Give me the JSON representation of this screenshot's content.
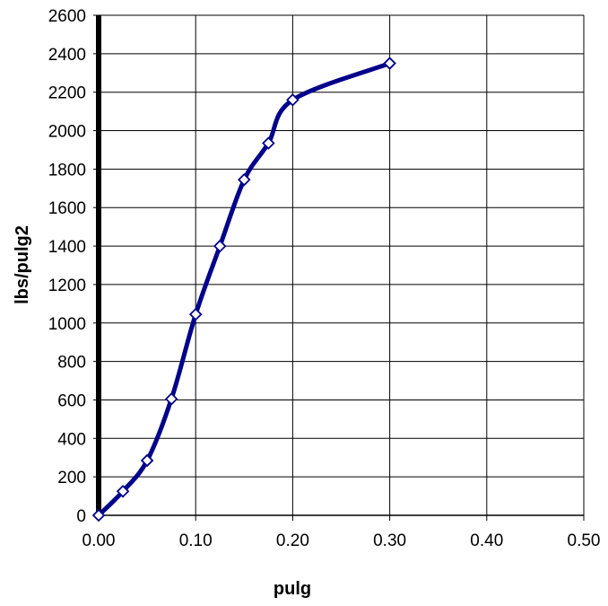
{
  "chart_data": {
    "type": "line",
    "title": "",
    "xlabel": "pulg",
    "ylabel": "lbs/pulg2",
    "xlim": [
      0,
      0.5
    ],
    "ylim": [
      0,
      2600
    ],
    "x_ticks": [
      "0.00",
      "0.10",
      "0.20",
      "0.30",
      "0.40",
      "0.50"
    ],
    "x_tick_values": [
      0,
      0.1,
      0.2,
      0.3,
      0.4,
      0.5
    ],
    "y_ticks": [
      "0",
      "200",
      "400",
      "600",
      "800",
      "1000",
      "1200",
      "1400",
      "1600",
      "1800",
      "2000",
      "2200",
      "2400",
      "2600"
    ],
    "y_tick_values": [
      0,
      200,
      400,
      600,
      800,
      1000,
      1200,
      1400,
      1600,
      1800,
      2000,
      2200,
      2400,
      2600
    ],
    "grid": true,
    "line_color": "#00008B",
    "marker": "diamond",
    "series": [
      {
        "x": [
          0,
          0.025,
          0.05,
          0.075,
          0.1,
          0.125,
          0.15,
          0.175,
          0.2,
          0.3
        ],
        "y": [
          0,
          125,
          285,
          605,
          1045,
          1400,
          1745,
          1935,
          2160,
          2350
        ]
      }
    ]
  }
}
